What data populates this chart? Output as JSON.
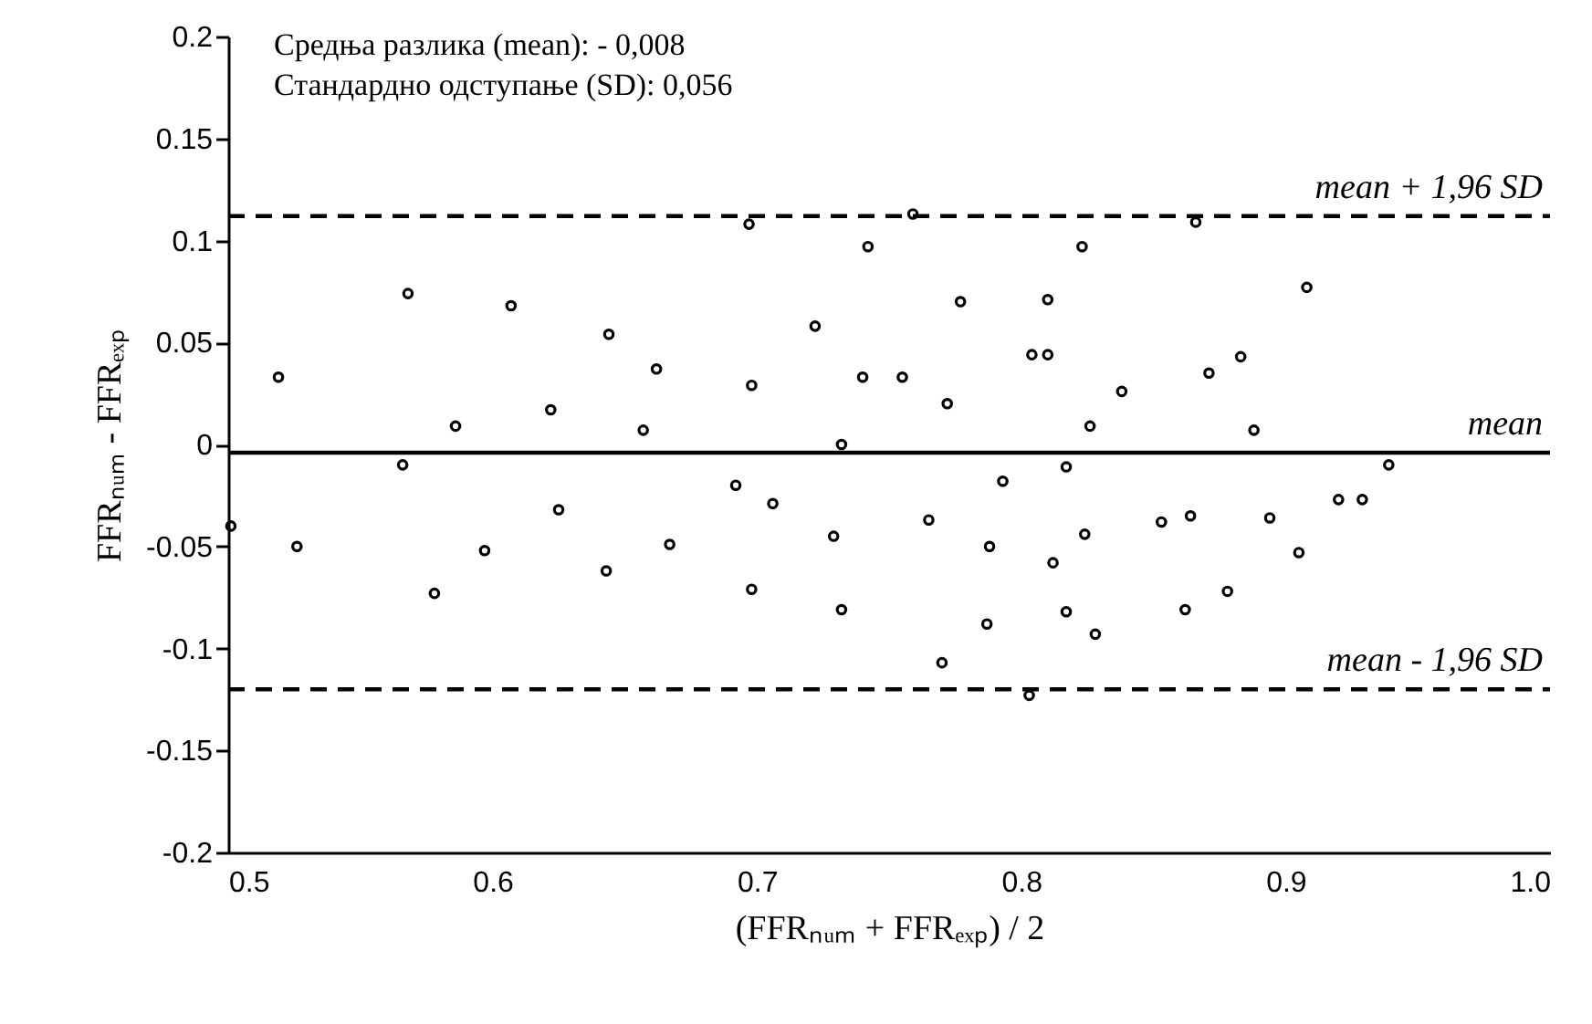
{
  "chart_data": {
    "type": "scatter",
    "xlabel": "(FFRₙᵤₘ + FFRₑₓₚ) / 2",
    "ylabel": "FFRₙᵤₘ - FFRₑₓₚ",
    "annotations": [
      "Средња разлика (mean):  - 0,008",
      "Стандардно одступање (SD):  0,056"
    ],
    "xlim": [
      0.5,
      1.0
    ],
    "xticks": [
      {
        "value": 0.5,
        "label": "0.5"
      },
      {
        "value": 0.6,
        "label": "0.6"
      },
      {
        "value": 0.7,
        "label": "0.7"
      },
      {
        "value": 0.8,
        "label": "0.8"
      },
      {
        "value": 0.9,
        "label": "0.9"
      },
      {
        "value": 1.0,
        "label": "1.0"
      }
    ],
    "ylim": [
      -0.2,
      0.2
    ],
    "yticks": [
      {
        "value": 0.2,
        "label": "0.2"
      },
      {
        "value": 0.15,
        "label": "0.15"
      },
      {
        "value": 0.1,
        "label": "0.1"
      },
      {
        "value": 0.05,
        "label": "0.05"
      },
      {
        "value": 0,
        "label": "0"
      },
      {
        "value": -0.05,
        "label": "-0.05"
      },
      {
        "value": -0.1,
        "label": "-0.1"
      },
      {
        "value": -0.15,
        "label": "-0.15"
      },
      {
        "value": -0.2,
        "label": "-0.2"
      }
    ],
    "grid": false,
    "marker": "circle",
    "series": [
      {
        "color": "#000000",
        "x": [
          0.519,
          0.568,
          0.586,
          0.607,
          0.622,
          0.644,
          0.662,
          0.657,
          0.697,
          0.698,
          0.722,
          0.742,
          0.74,
          0.732,
          0.566,
          0.759,
          0.866,
          0.823,
          0.777,
          0.81,
          0.908,
          0.755,
          0.772,
          0.804,
          0.81,
          0.838,
          0.871,
          0.883,
          0.826,
          0.888,
          0.817,
          0.939,
          0.501,
          0.526,
          0.578,
          0.597,
          0.625,
          0.643,
          0.667,
          0.692,
          0.706,
          0.698,
          0.729,
          0.732,
          0.765,
          0.793,
          0.788,
          0.812,
          0.824,
          0.787,
          0.77,
          0.817,
          0.828,
          0.803,
          0.853,
          0.864,
          0.862,
          0.878,
          0.894,
          0.905,
          0.92,
          0.929
        ],
        "values": [
          0.033,
          0.074,
          0.009,
          0.068,
          0.017,
          0.054,
          0.037,
          0.007,
          0.108,
          0.029,
          0.058,
          0.097,
          0.033,
          0.0,
          -0.01,
          0.113,
          0.109,
          0.097,
          0.07,
          0.071,
          0.077,
          0.033,
          0.02,
          0.044,
          0.044,
          0.026,
          0.035,
          0.043,
          0.009,
          0.007,
          -0.011,
          -0.01,
          -0.04,
          -0.05,
          -0.073,
          -0.052,
          -0.032,
          -0.062,
          -0.049,
          -0.02,
          -0.029,
          -0.071,
          -0.045,
          -0.081,
          -0.037,
          -0.018,
          -0.05,
          -0.058,
          -0.044,
          -0.088,
          -0.107,
          -0.082,
          -0.093,
          -0.123,
          -0.038,
          -0.035,
          -0.081,
          -0.072,
          -0.036,
          -0.053,
          -0.027,
          -0.027
        ]
      }
    ],
    "ref_lines": [
      {
        "axis": "y",
        "value": 0.112,
        "label": "mean + 1,96 SD",
        "line_style": "dashed",
        "color": "#000000"
      },
      {
        "axis": "y",
        "value": -0.004,
        "label": "mean",
        "line_style": "solid",
        "color": "#000000"
      },
      {
        "axis": "y",
        "value": -0.12,
        "label": "mean - 1,96 SD",
        "line_style": "dashed",
        "color": "#000000"
      }
    ]
  }
}
